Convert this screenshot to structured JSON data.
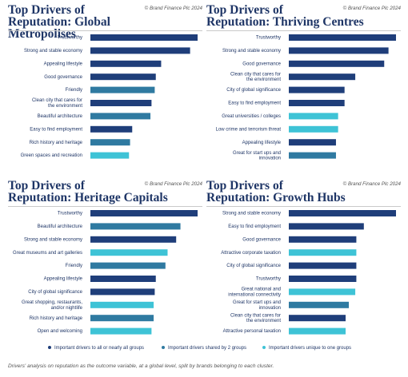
{
  "colors": {
    "all_groups": "#1f3e7a",
    "two_groups": "#2f7aa1",
    "one_group": "#3ec3d6"
  },
  "credit": "© Brand Finance Plc 2024",
  "legend": {
    "all": "Important drivers to all or nearly all groups",
    "two": "Important drivers shared by 2 groups",
    "one": "Important drivers unique to one groups"
  },
  "footnote": "Drivers' analysis on reputation as the outcome variable, at a global level, split by brands belonging to each cluster.",
  "chart_data": [
    {
      "type": "bar",
      "title": "Top Drivers of Reputation: Global Metropolises",
      "title_lines": [
        "Top Drivers of",
        "Reputation: Global Metropolises"
      ],
      "categories": [
        "Trustworthy",
        "Strong and stable economy",
        "Appealing lifestyle",
        "Good governance",
        "Friendly",
        "Clean city that cares for the environment",
        "Beautiful architecture",
        "Easy to find employment",
        "Rich history and heritage",
        "Green spaces and recreation"
      ],
      "labels": [
        [
          "Trustworthy"
        ],
        [
          "Strong and stable economy"
        ],
        [
          "Appealing lifestyle"
        ],
        [
          "Good governance"
        ],
        [
          "Friendly"
        ],
        [
          "Clean city that cares for",
          "the environment"
        ],
        [
          "Beautiful architecture"
        ],
        [
          "Easy to find employment"
        ],
        [
          "Rich history and heritage"
        ],
        [
          "Green spaces and recreation"
        ]
      ],
      "values": [
        100,
        93,
        66,
        61,
        60,
        57,
        56,
        39,
        37,
        36
      ],
      "groups": [
        "all",
        "all",
        "all",
        "all",
        "two",
        "all",
        "two",
        "all",
        "two",
        "one"
      ],
      "xlim": [
        0,
        100
      ]
    },
    {
      "type": "bar",
      "title": "Top Drivers of Reputation: Thriving Centres",
      "title_lines": [
        "Top Drivers of",
        "Reputation: Thriving Centres"
      ],
      "categories": [
        "Trustworthy",
        "Strong and stable economy",
        "Good governance",
        "Clean city that cares for the environment",
        "City of global significance",
        "Easy to find employment",
        "Great universities / colleges",
        "Low crime and terrorism threat",
        "Appealing lifestyle",
        "Great for start ups and innovation"
      ],
      "labels": [
        [
          "Trustworthy"
        ],
        [
          "Strong and stable economy"
        ],
        [
          "Good governance"
        ],
        [
          "Clean city that cares for",
          "the environment"
        ],
        [
          "City of global significance"
        ],
        [
          "Easy to find employment"
        ],
        [
          "Great universities / colleges"
        ],
        [
          "Low crime and terrorism threat"
        ],
        [
          "Appealing lifestyle"
        ],
        [
          "Great for start ups and",
          "innovation"
        ]
      ],
      "values": [
        100,
        93,
        89,
        62,
        52,
        52,
        46,
        46,
        44,
        44
      ],
      "groups": [
        "all",
        "all",
        "all",
        "all",
        "all",
        "all",
        "one",
        "one",
        "all",
        "two"
      ],
      "xlim": [
        0,
        100
      ]
    },
    {
      "type": "bar",
      "title": "Top Drivers of Reputation: Heritage Capitals",
      "title_lines": [
        "Top Drivers of",
        "Reputation: Heritage Capitals"
      ],
      "categories": [
        "Trustworthy",
        "Beautiful architecture",
        "Strong and stable economy",
        "Great museums and art galleries",
        "Friendly",
        "Appealing lifestyle",
        "City of global significance",
        "Great shopping, restaurants, and/or nightlife",
        "Rich history and heritage",
        "Open and welcoming"
      ],
      "labels": [
        [
          "Trustworthy"
        ],
        [
          "Beautiful architecture"
        ],
        [
          "Strong and stable economy"
        ],
        [
          "Great museums and art galleries"
        ],
        [
          "Friendly"
        ],
        [
          "Appealing lifestyle"
        ],
        [
          "City of global significance"
        ],
        [
          "Great shopping, restaurants,",
          "and/or nightlife"
        ],
        [
          "Rich history and heritage"
        ],
        [
          "Open and welcoming"
        ]
      ],
      "values": [
        100,
        84,
        80,
        72,
        70,
        61,
        60,
        59,
        59,
        57
      ],
      "groups": [
        "all",
        "two",
        "all",
        "one",
        "two",
        "all",
        "all",
        "one",
        "two",
        "one"
      ],
      "xlim": [
        0,
        100
      ]
    },
    {
      "type": "bar",
      "title": "Top Drivers of Reputation: Growth Hubs",
      "title_lines": [
        "Top Drivers of",
        "Reputation: Growth Hubs"
      ],
      "categories": [
        "Strong and stable economy",
        "Easy to find employment",
        "Good governance",
        "Attractive corporate taxation",
        "City of global significance",
        "Trustworthy",
        "Great national and international connectivity",
        "Great for start ups and innovation",
        "Clean city that cares for the environment",
        "Attractive personal taxation"
      ],
      "labels": [
        [
          "Strong and stable economy"
        ],
        [
          "Easy to find employment"
        ],
        [
          "Good governance"
        ],
        [
          "Attractive corporate taxation"
        ],
        [
          "City of global significance"
        ],
        [
          "Trustworthy"
        ],
        [
          "Great national and",
          "international connectivity"
        ],
        [
          "Great for start ups and",
          "innovation"
        ],
        [
          "Clean city that cares for",
          "the environment"
        ],
        [
          "Attractive personal taxation"
        ]
      ],
      "values": [
        100,
        70,
        63,
        63,
        63,
        63,
        62,
        56,
        53,
        53
      ],
      "groups": [
        "all",
        "all",
        "all",
        "one",
        "all",
        "all",
        "one",
        "two",
        "all",
        "one"
      ],
      "xlim": [
        0,
        100
      ]
    }
  ]
}
